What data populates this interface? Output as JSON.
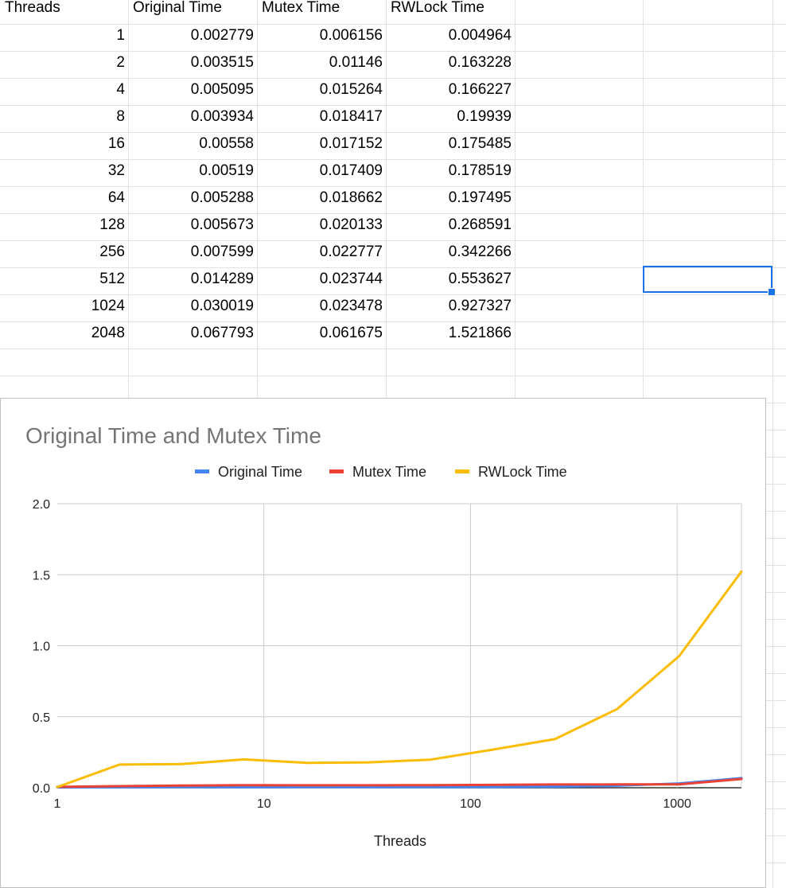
{
  "sheet": {
    "headers": [
      "Threads",
      "Original Time",
      "Mutex Time",
      "RWLock Time"
    ],
    "rows": [
      [
        "1",
        "0.002779",
        "0.006156",
        "0.004964"
      ],
      [
        "2",
        "0.003515",
        "0.01146",
        "0.163228"
      ],
      [
        "4",
        "0.005095",
        "0.015264",
        "0.166227"
      ],
      [
        "8",
        "0.003934",
        "0.018417",
        "0.19939"
      ],
      [
        "16",
        "0.00558",
        "0.017152",
        "0.175485"
      ],
      [
        "32",
        "0.00519",
        "0.017409",
        "0.178519"
      ],
      [
        "64",
        "0.005288",
        "0.018662",
        "0.197495"
      ],
      [
        "128",
        "0.005673",
        "0.020133",
        "0.268591"
      ],
      [
        "256",
        "0.007599",
        "0.022777",
        "0.342266"
      ],
      [
        "512",
        "0.014289",
        "0.023744",
        "0.553627"
      ],
      [
        "1024",
        "0.030019",
        "0.023478",
        "0.927327"
      ],
      [
        "2048",
        "0.067793",
        "0.061675",
        "1.521866"
      ]
    ],
    "selection_color": "#1a73e8"
  },
  "chart_data": {
    "type": "line",
    "title": "Original Time and Mutex Time",
    "xlabel": "Threads",
    "ylabel": "",
    "x_scale": "log",
    "x": [
      1,
      2,
      4,
      8,
      16,
      32,
      64,
      128,
      256,
      512,
      1024,
      2048
    ],
    "xlim": [
      1,
      2048
    ],
    "ylim": [
      0,
      2
    ],
    "x_ticks": [
      "1",
      "10",
      "100",
      "1000"
    ],
    "y_ticks": [
      "0.0",
      "0.5",
      "1.0",
      "1.5",
      "2.0"
    ],
    "legend_position": "top",
    "grid": true,
    "series": [
      {
        "name": "Original Time",
        "color": "#4285f4",
        "values": [
          0.002779,
          0.003515,
          0.005095,
          0.003934,
          0.00558,
          0.00519,
          0.005288,
          0.005673,
          0.007599,
          0.014289,
          0.030019,
          0.067793
        ]
      },
      {
        "name": "Mutex Time",
        "color": "#ea4335",
        "values": [
          0.006156,
          0.01146,
          0.015264,
          0.018417,
          0.017152,
          0.017409,
          0.018662,
          0.020133,
          0.022777,
          0.023744,
          0.023478,
          0.061675
        ]
      },
      {
        "name": "RWLock Time",
        "color": "#fbbc04",
        "values": [
          0.004964,
          0.163228,
          0.166227,
          0.19939,
          0.175485,
          0.178519,
          0.197495,
          0.268591,
          0.342266,
          0.553627,
          0.927327,
          1.521866
        ]
      }
    ]
  }
}
